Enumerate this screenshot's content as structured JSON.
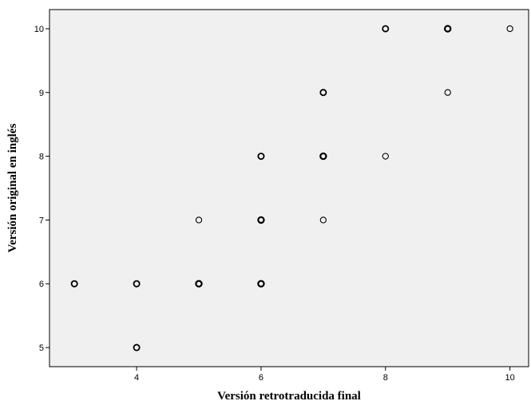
{
  "chart_data": {
    "type": "scatter",
    "title": "",
    "xlabel": "Versión retrotraducida final",
    "ylabel": "Versión original en inglés",
    "xlim": [
      2.6,
      10.3
    ],
    "ylim": [
      4.7,
      10.3
    ],
    "xticks": [
      "4",
      "6",
      "8",
      "10"
    ],
    "yticks": [
      "5",
      "6",
      "7",
      "8",
      "9",
      "10"
    ],
    "grid": false,
    "background": "#f0f0f0",
    "marker_color": "#000000",
    "points": [
      {
        "x": 3,
        "y": 6,
        "n": 2
      },
      {
        "x": 4,
        "y": 6,
        "n": 2
      },
      {
        "x": 4,
        "y": 5,
        "n": 2
      },
      {
        "x": 5,
        "y": 7,
        "n": 1
      },
      {
        "x": 5,
        "y": 6,
        "n": 3
      },
      {
        "x": 6,
        "y": 8,
        "n": 2
      },
      {
        "x": 6,
        "y": 7,
        "n": 3
      },
      {
        "x": 6,
        "y": 6,
        "n": 3
      },
      {
        "x": 7,
        "y": 9,
        "n": 2
      },
      {
        "x": 7,
        "y": 8,
        "n": 3
      },
      {
        "x": 7,
        "y": 7,
        "n": 1
      },
      {
        "x": 8,
        "y": 10,
        "n": 2
      },
      {
        "x": 8,
        "y": 8,
        "n": 1
      },
      {
        "x": 9,
        "y": 10,
        "n": 3
      },
      {
        "x": 9,
        "y": 9,
        "n": 1
      },
      {
        "x": 10,
        "y": 10,
        "n": 1
      }
    ]
  }
}
